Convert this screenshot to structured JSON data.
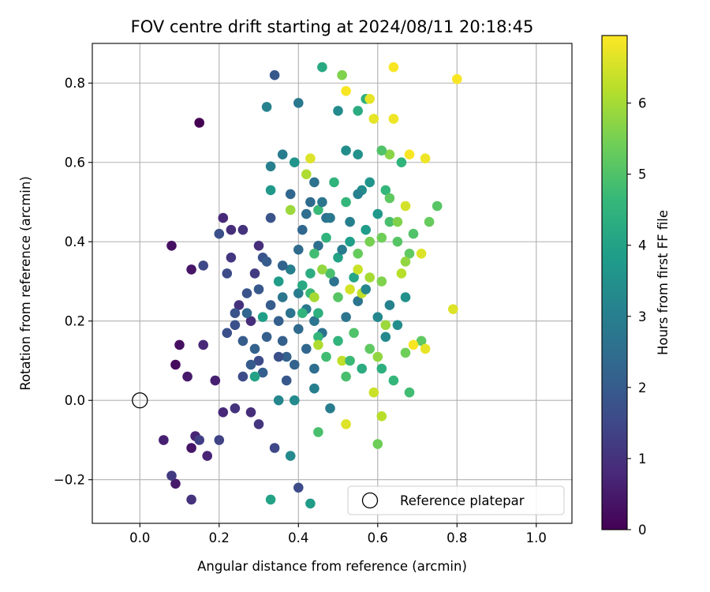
{
  "chart_data": {
    "type": "scatter",
    "title": "FOV centre drift starting at 2024/08/11 20:18:45",
    "xlabel": "Angular distance from reference (arcmin)",
    "ylabel": "Rotation from reference (arcmin)",
    "xlim": [
      -0.12,
      1.09
    ],
    "ylim": [
      -0.31,
      0.9
    ],
    "xticks": [
      0.0,
      0.2,
      0.4,
      0.6,
      0.8,
      1.0
    ],
    "yticks": [
      -0.2,
      0.0,
      0.2,
      0.4,
      0.6,
      0.8
    ],
    "xtick_labels": [
      "0.0",
      "0.2",
      "0.4",
      "0.6",
      "0.8",
      "1.0"
    ],
    "ytick_labels": [
      "−0.2",
      "0.0",
      "0.2",
      "0.4",
      "0.6",
      "0.8"
    ],
    "grid": true,
    "colormap": "viridis",
    "colorbar": {
      "label": "Hours from first FF file",
      "range": [
        0,
        6.95
      ],
      "ticks": [
        0,
        1,
        2,
        3,
        4,
        5,
        6
      ],
      "tick_labels": [
        "0",
        "1",
        "2",
        "3",
        "4",
        "5",
        "6"
      ]
    },
    "legend": {
      "position": "lower-right",
      "entries": [
        "Reference platepar"
      ]
    },
    "reference_point": {
      "x": 0.0,
      "y": 0.0
    },
    "points": [
      [
        0.15,
        0.7,
        0.0
      ],
      [
        0.08,
        0.39,
        0.3
      ],
      [
        0.13,
        0.33,
        0.4
      ],
      [
        0.1,
        0.14,
        0.3
      ],
      [
        0.09,
        0.09,
        0.2
      ],
      [
        0.06,
        -0.1,
        0.6
      ],
      [
        0.09,
        -0.21,
        0.5
      ],
      [
        0.13,
        -0.12,
        0.4
      ],
      [
        0.12,
        0.06,
        0.5
      ],
      [
        0.14,
        -0.09,
        0.7
      ],
      [
        0.16,
        0.14,
        0.8
      ],
      [
        0.17,
        -0.14,
        0.7
      ],
      [
        0.19,
        0.05,
        0.6
      ],
      [
        0.21,
        0.46,
        0.8
      ],
      [
        0.23,
        0.43,
        0.9
      ],
      [
        0.26,
        0.43,
        1.0
      ],
      [
        0.3,
        0.39,
        0.9
      ],
      [
        0.23,
        0.36,
        1.1
      ],
      [
        0.29,
        0.32,
        1.2
      ],
      [
        0.25,
        0.24,
        1.0
      ],
      [
        0.28,
        0.2,
        0.9
      ],
      [
        0.21,
        -0.03,
        0.8
      ],
      [
        0.24,
        -0.02,
        1.0
      ],
      [
        0.28,
        -0.03,
        0.9
      ],
      [
        0.3,
        -0.06,
        1.1
      ],
      [
        0.13,
        -0.25,
        1.0
      ],
      [
        0.08,
        -0.19,
        1.2
      ],
      [
        0.15,
        -0.1,
        1.3
      ],
      [
        0.2,
        -0.1,
        1.4
      ],
      [
        0.22,
        0.32,
        1.6
      ],
      [
        0.2,
        0.42,
        1.7
      ],
      [
        0.16,
        0.34,
        1.5
      ],
      [
        0.26,
        0.06,
        1.6
      ],
      [
        0.3,
        0.1,
        1.6
      ],
      [
        0.22,
        0.17,
        1.7
      ],
      [
        0.24,
        0.19,
        1.7
      ],
      [
        0.27,
        0.27,
        1.8
      ],
      [
        0.31,
        0.36,
        1.8
      ],
      [
        0.33,
        0.46,
        1.8
      ],
      [
        0.34,
        0.82,
        1.9
      ],
      [
        0.32,
        0.35,
        2.0
      ],
      [
        0.33,
        0.24,
        2.0
      ],
      [
        0.35,
        0.2,
        2.1
      ],
      [
        0.36,
        0.15,
        2.1
      ],
      [
        0.37,
        0.11,
        2.2
      ],
      [
        0.39,
        0.09,
        2.2
      ],
      [
        0.4,
        -0.22,
        1.6
      ],
      [
        0.34,
        -0.12,
        1.5
      ],
      [
        0.38,
        0.52,
        2.3
      ],
      [
        0.41,
        0.43,
        2.3
      ],
      [
        0.43,
        0.5,
        2.4
      ],
      [
        0.45,
        0.39,
        2.5
      ],
      [
        0.47,
        0.46,
        2.6
      ],
      [
        0.49,
        0.3,
        2.6
      ],
      [
        0.52,
        0.21,
        2.7
      ],
      [
        0.55,
        0.25,
        2.7
      ],
      [
        0.4,
        0.75,
        2.8
      ],
      [
        0.36,
        0.62,
        2.9
      ],
      [
        0.33,
        0.59,
        3.0
      ],
      [
        0.32,
        0.74,
        3.1
      ],
      [
        0.38,
        0.33,
        3.0
      ],
      [
        0.4,
        0.27,
        2.9
      ],
      [
        0.42,
        0.23,
        2.8
      ],
      [
        0.44,
        0.2,
        2.7
      ],
      [
        0.46,
        0.17,
        2.6
      ],
      [
        0.5,
        0.73,
        3.3
      ],
      [
        0.52,
        0.63,
        3.4
      ],
      [
        0.55,
        0.62,
        3.5
      ],
      [
        0.56,
        0.53,
        3.4
      ],
      [
        0.58,
        0.55,
        3.6
      ],
      [
        0.6,
        0.47,
        3.7
      ],
      [
        0.57,
        0.43,
        3.8
      ],
      [
        0.53,
        0.4,
        3.9
      ],
      [
        0.5,
        0.36,
        4.0
      ],
      [
        0.54,
        0.31,
        4.1
      ],
      [
        0.6,
        0.21,
        3.2
      ],
      [
        0.62,
        0.16,
        3.3
      ],
      [
        0.65,
        0.19,
        3.4
      ],
      [
        0.67,
        0.26,
        3.5
      ],
      [
        0.63,
        0.24,
        3.1
      ],
      [
        0.35,
        0.0,
        3.2
      ],
      [
        0.39,
        0.0,
        3.3
      ],
      [
        0.44,
        0.03,
        3.0
      ],
      [
        0.48,
        -0.02,
        2.9
      ],
      [
        0.38,
        -0.14,
        3.3
      ],
      [
        0.33,
        -0.25,
        4.0
      ],
      [
        0.43,
        -0.26,
        3.8
      ],
      [
        0.46,
        0.84,
        4.2
      ],
      [
        0.55,
        0.73,
        4.3
      ],
      [
        0.57,
        0.76,
        4.4
      ],
      [
        0.49,
        0.55,
        4.5
      ],
      [
        0.52,
        0.5,
        4.6
      ],
      [
        0.45,
        0.48,
        4.7
      ],
      [
        0.47,
        0.41,
        4.5
      ],
      [
        0.44,
        0.37,
        4.8
      ],
      [
        0.48,
        0.32,
        4.9
      ],
      [
        0.43,
        0.27,
        4.7
      ],
      [
        0.41,
        0.22,
        4.5
      ],
      [
        0.45,
        0.16,
        4.6
      ],
      [
        0.47,
        0.11,
        4.8
      ],
      [
        0.52,
        0.06,
        4.9
      ],
      [
        0.56,
        0.08,
        4.3
      ],
      [
        0.61,
        0.08,
        4.4
      ],
      [
        0.64,
        0.05,
        4.6
      ],
      [
        0.68,
        0.02,
        4.8
      ],
      [
        0.66,
        0.6,
        4.5
      ],
      [
        0.62,
        0.53,
        4.6
      ],
      [
        0.63,
        0.45,
        4.9
      ],
      [
        0.65,
        0.4,
        5.1
      ],
      [
        0.68,
        0.37,
        5.2
      ],
      [
        0.69,
        0.42,
        5.0
      ],
      [
        0.73,
        0.45,
        5.3
      ],
      [
        0.75,
        0.49,
        5.1
      ],
      [
        0.71,
        0.15,
        5.2
      ],
      [
        0.67,
        0.12,
        5.4
      ],
      [
        0.45,
        -0.08,
        4.9
      ],
      [
        0.6,
        -0.11,
        5.4
      ],
      [
        0.54,
        0.17,
        5.0
      ],
      [
        0.58,
        0.13,
        5.2
      ],
      [
        0.5,
        0.26,
        5.1
      ],
      [
        0.55,
        0.37,
        5.3
      ],
      [
        0.58,
        0.4,
        5.5
      ],
      [
        0.61,
        0.3,
        5.6
      ],
      [
        0.63,
        0.62,
        5.7
      ],
      [
        0.51,
        0.82,
        5.6
      ],
      [
        0.6,
        0.11,
        5.8
      ],
      [
        0.62,
        0.19,
        5.9
      ],
      [
        0.58,
        0.31,
        6.0
      ],
      [
        0.42,
        0.57,
        6.1
      ],
      [
        0.38,
        0.48,
        5.9
      ],
      [
        0.66,
        0.32,
        6.2
      ],
      [
        0.61,
        -0.04,
        6.2
      ],
      [
        0.59,
        0.02,
        6.4
      ],
      [
        0.52,
        -0.06,
        6.6
      ],
      [
        0.56,
        0.27,
        6.3
      ],
      [
        0.59,
        0.71,
        6.7
      ],
      [
        0.64,
        0.84,
        6.9
      ],
      [
        0.64,
        0.71,
        6.8
      ],
      [
        0.67,
        0.49,
        6.5
      ],
      [
        0.71,
        0.37,
        6.6
      ],
      [
        0.72,
        0.13,
        6.7
      ],
      [
        0.69,
        0.14,
        6.9
      ],
      [
        0.68,
        0.62,
        6.9
      ],
      [
        0.72,
        0.61,
        6.8
      ],
      [
        0.8,
        0.81,
        6.9
      ],
      [
        0.79,
        0.23,
        6.6
      ],
      [
        0.52,
        0.78,
        6.9
      ],
      [
        0.58,
        0.76,
        6.7
      ],
      [
        0.43,
        0.61,
        6.6
      ],
      [
        0.53,
        0.28,
        6.5
      ],
      [
        0.55,
        0.33,
        6.4
      ],
      [
        0.51,
        0.1,
        6.3
      ],
      [
        0.45,
        0.14,
        6.1
      ],
      [
        0.44,
        0.26,
        6.0
      ],
      [
        0.46,
        0.33,
        5.8
      ],
      [
        0.27,
        0.22,
        2.3
      ],
      [
        0.29,
        0.13,
        2.2
      ],
      [
        0.31,
        0.07,
        2.1
      ],
      [
        0.35,
        0.11,
        1.7
      ],
      [
        0.37,
        0.05,
        1.9
      ],
      [
        0.36,
        0.34,
        2.2
      ],
      [
        0.4,
        0.38,
        2.4
      ],
      [
        0.42,
        0.47,
        2.5
      ],
      [
        0.44,
        0.55,
        2.6
      ],
      [
        0.46,
        0.5,
        2.7
      ],
      [
        0.48,
        0.46,
        2.8
      ],
      [
        0.51,
        0.38,
        2.9
      ],
      [
        0.53,
        0.45,
        3.0
      ],
      [
        0.55,
        0.52,
        3.1
      ],
      [
        0.57,
        0.28,
        3.2
      ],
      [
        0.42,
        0.13,
        2.3
      ],
      [
        0.4,
        0.18,
        2.4
      ],
      [
        0.44,
        0.08,
        2.5
      ],
      [
        0.38,
        0.22,
        2.6
      ],
      [
        0.36,
        0.26,
        2.7
      ],
      [
        0.26,
        0.15,
        2.0
      ],
      [
        0.24,
        0.22,
        1.8
      ],
      [
        0.3,
        0.28,
        1.9
      ],
      [
        0.32,
        0.16,
        2.1
      ],
      [
        0.28,
        0.09,
        2.0
      ],
      [
        0.39,
        0.6,
        3.6
      ],
      [
        0.33,
        0.53,
        3.7
      ],
      [
        0.35,
        0.3,
        3.8
      ],
      [
        0.31,
        0.21,
        3.9
      ],
      [
        0.29,
        0.06,
        4.0
      ],
      [
        0.41,
        0.29,
        4.2
      ],
      [
        0.43,
        0.32,
        4.3
      ],
      [
        0.45,
        0.22,
        4.4
      ],
      [
        0.5,
        0.15,
        4.5
      ],
      [
        0.53,
        0.1,
        4.7
      ],
      [
        0.61,
        0.63,
        5.0
      ],
      [
        0.63,
        0.51,
        5.2
      ],
      [
        0.61,
        0.41,
        5.4
      ],
      [
        0.65,
        0.45,
        5.6
      ],
      [
        0.67,
        0.35,
        5.8
      ]
    ]
  }
}
